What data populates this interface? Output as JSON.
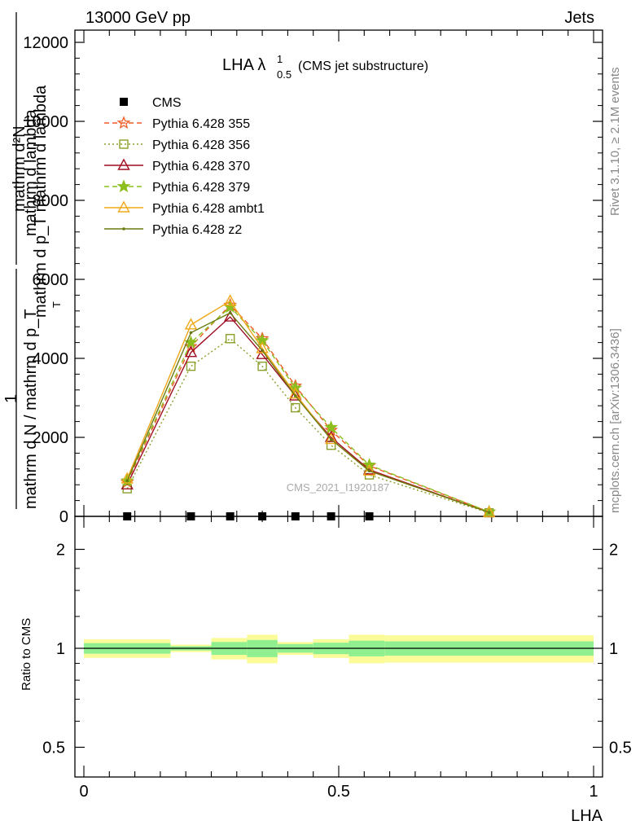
{
  "header": {
    "left": "13000 GeV pp",
    "right": "Jets"
  },
  "side_labels": {
    "rivet": "Rivet 3.1.10, ≥ 2.1M events",
    "mcplots": "mcplots.cern.ch [arXiv:1306.3436]"
  },
  "watermark": "CMS_2021_I1920187",
  "title": {
    "main": "LHA λ",
    "sup": "1",
    "sub": "0.5",
    "note": "(CMS jet substructure)"
  },
  "y_label_main": {
    "numerator": "mathrm d²N",
    "denominator": "mathrm d p_T mathrm d lambda",
    "lead": "1",
    "lead_den": "mathrm d N / mathrm d p_T",
    "garbled1": "mathrm d lambda",
    "garbled2": "mathrm d p",
    "garbled3": "T",
    "garbled4": "mathrm d"
  },
  "x_label": "LHA",
  "ratio_ylabel": "Ratio to CMS",
  "colors": {
    "p355": "#ee5a24",
    "p356": "#8aa02a",
    "p370": "#9e0e22",
    "p379": "#8cbf1e",
    "ambt1": "#f0a818",
    "z2": "#6b7a10",
    "band_inner": "#90f090",
    "band_outer": "#fbfb9a"
  },
  "chart_data": [
    {
      "type": "line",
      "xlim": [
        0,
        1
      ],
      "ylim": [
        0,
        12000
      ],
      "x_ticks": [
        0,
        0.5,
        1
      ],
      "y_ticks": [
        0,
        2000,
        4000,
        6000,
        8000,
        10000,
        12000
      ],
      "y_tick_labels": [
        "0",
        "2000",
        "4000",
        "6000",
        "8000",
        "10000",
        "12000"
      ],
      "x": [
        0.085,
        0.21,
        0.287,
        0.35,
        0.415,
        0.485,
        0.56,
        0.795
      ],
      "legend_placement": "top-left",
      "series": [
        {
          "name": "CMS",
          "marker": "square",
          "values": [
            0,
            0,
            0,
            0,
            0,
            0,
            0,
            null
          ]
        },
        {
          "name": "Pythia 6.428 355",
          "marker": "star-open",
          "dash": "dashed",
          "values": [
            870,
            4300,
            5350,
            4500,
            3300,
            2180,
            1280,
            110
          ]
        },
        {
          "name": "Pythia 6.428 356",
          "marker": "square-open",
          "dash": "dotted",
          "values": [
            700,
            3800,
            4500,
            3800,
            2750,
            1800,
            1050,
            90
          ]
        },
        {
          "name": "Pythia 6.428 370",
          "marker": "triangle-open",
          "dash": "solid",
          "values": [
            800,
            4150,
            5050,
            4100,
            3050,
            2000,
            1180,
            100
          ]
        },
        {
          "name": "Pythia 6.428 379",
          "marker": "star-filled",
          "dash": "dashed",
          "values": [
            900,
            4400,
            5300,
            4450,
            3250,
            2250,
            1300,
            115
          ]
        },
        {
          "name": "Pythia 6.428 ambt1",
          "marker": "triangle-open",
          "dash": "solid",
          "values": [
            950,
            4850,
            5450,
            4250,
            3100,
            1950,
            1150,
            100
          ]
        },
        {
          "name": "Pythia 6.428 z2",
          "marker": "dot",
          "dash": "solid",
          "values": [
            900,
            4650,
            5150,
            4200,
            3050,
            1950,
            1150,
            100
          ]
        }
      ]
    },
    {
      "type": "area",
      "xlim": [
        0,
        1
      ],
      "ylim": [
        0.4,
        2.3
      ],
      "y_ticks": [
        0.5,
        1,
        2
      ],
      "y_tick_labels": [
        "0.5",
        "1",
        "2"
      ],
      "ylabel": "Ratio to CMS",
      "bins": [
        {
          "x0": 0.0,
          "x1": 0.17,
          "inner": [
            0.963,
            1.037
          ],
          "outer": [
            0.935,
            1.065
          ]
        },
        {
          "x0": 0.17,
          "x1": 0.25,
          "inner": [
            0.985,
            1.015
          ],
          "outer": [
            0.974,
            1.026
          ]
        },
        {
          "x0": 0.25,
          "x1": 0.32,
          "inner": [
            0.955,
            1.045
          ],
          "outer": [
            0.925,
            1.075
          ]
        },
        {
          "x0": 0.32,
          "x1": 0.38,
          "inner": [
            0.94,
            1.06
          ],
          "outer": [
            0.9,
            1.1
          ]
        },
        {
          "x0": 0.38,
          "x1": 0.45,
          "inner": [
            0.97,
            1.03
          ],
          "outer": [
            0.955,
            1.045
          ]
        },
        {
          "x0": 0.45,
          "x1": 0.52,
          "inner": [
            0.96,
            1.04
          ],
          "outer": [
            0.935,
            1.065
          ]
        },
        {
          "x0": 0.52,
          "x1": 0.59,
          "inner": [
            0.945,
            1.055
          ],
          "outer": [
            0.9,
            1.1
          ]
        },
        {
          "x0": 0.59,
          "x1": 1.0,
          "inner": [
            0.95,
            1.05
          ],
          "outer": [
            0.905,
            1.095
          ]
        }
      ],
      "reference": 1.0
    }
  ]
}
